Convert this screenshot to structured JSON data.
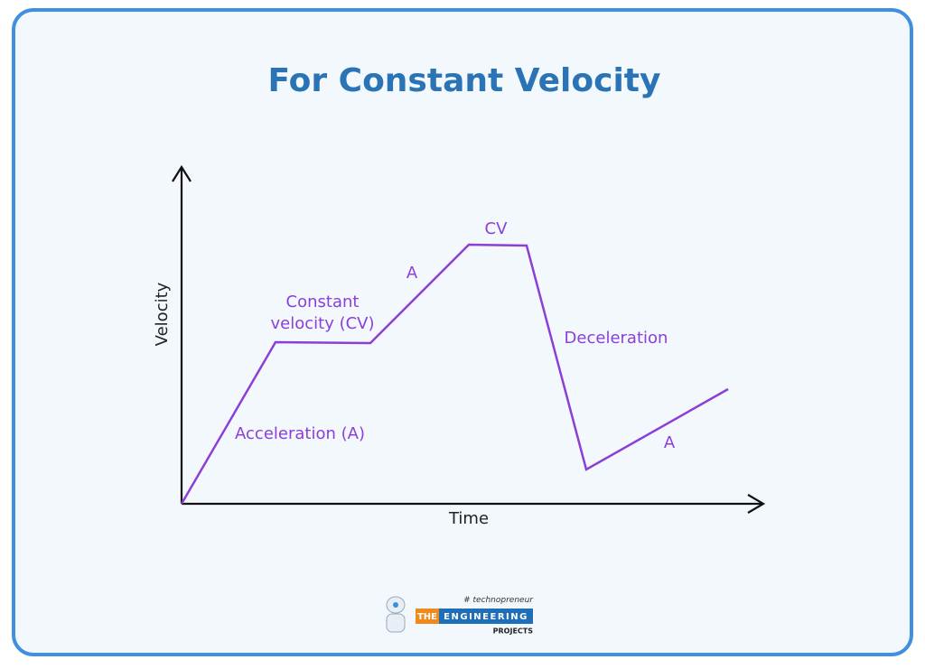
{
  "title": "For Constant Velocity",
  "axes": {
    "y_label": "Velocity",
    "x_label": "Time"
  },
  "annotations": [
    "Constant",
    "velocity (CV)",
    "A",
    "CV",
    "Deceleration",
    "Acceleration (A)",
    "A"
  ],
  "logo": {
    "tag": "# technopreneur",
    "the": "THE",
    "engineering": "ENGINEERING",
    "projects": "PROJECTS"
  }
}
